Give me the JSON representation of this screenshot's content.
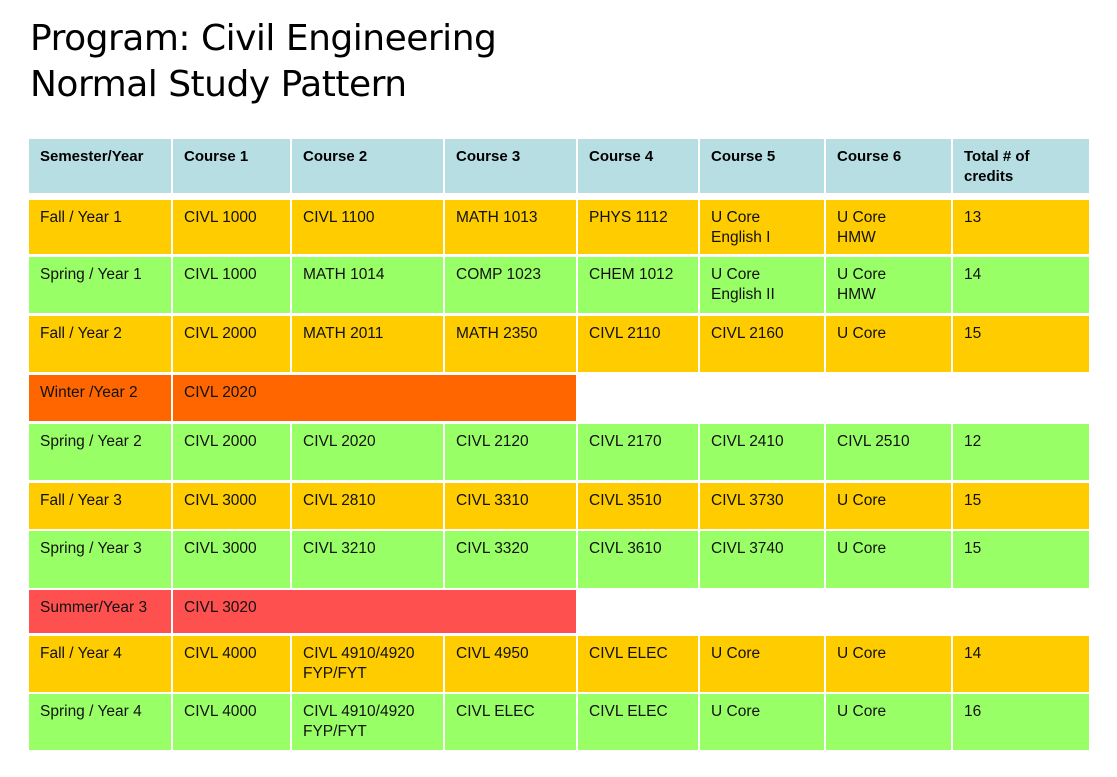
{
  "title": {
    "line1": "Program: Civil Engineering",
    "line2": "Normal Study Pattern"
  },
  "colors": {
    "header": "#B7DEE3",
    "fall": "#FFCC00",
    "spring": "#99FF66",
    "winter": "#FF6600",
    "summer": "#FF5050"
  },
  "table": {
    "headers": [
      "Semester/Year",
      "Course 1",
      "Course 2",
      "Course 3",
      "Course 4",
      "Course 5",
      "Course 6",
      "Total # of credits"
    ],
    "rows": [
      {
        "term": "Fall / Year 1",
        "kind": "fall",
        "courses": [
          "CIVL 1000",
          "CIVL 1100",
          "MATH 1013",
          "PHYS 1112",
          "U Core\nEnglish I",
          "U Core\nHMW"
        ],
        "credits": "13"
      },
      {
        "term": "Spring / Year 1",
        "kind": "spring",
        "courses": [
          "CIVL 1000",
          "MATH 1014",
          "COMP 1023",
          "CHEM 1012",
          "U Core\nEnglish II",
          "U Core\nHMW"
        ],
        "credits": "14"
      },
      {
        "term": "Fall / Year 2",
        "kind": "fall",
        "courses": [
          "CIVL 2000",
          "MATH 2011",
          "MATH 2350",
          "CIVL 2110",
          "CIVL 2160",
          "U Core"
        ],
        "credits": "15"
      },
      {
        "term": "Winter /Year 2",
        "kind": "winter",
        "courses": [
          "CIVL 2020"
        ],
        "credits": null
      },
      {
        "term": "Spring / Year 2",
        "kind": "spring",
        "courses": [
          "CIVL 2000",
          "CIVL 2020",
          "CIVL 2120",
          "CIVL 2170",
          "CIVL 2410",
          "CIVL 2510"
        ],
        "credits": "12"
      },
      {
        "term": "Fall / Year 3",
        "kind": "fall",
        "courses": [
          "CIVL 3000",
          "CIVL 2810",
          "CIVL 3310",
          "CIVL 3510",
          "CIVL 3730",
          "U Core"
        ],
        "credits": "15"
      },
      {
        "term": "Spring / Year 3",
        "kind": "spring",
        "courses": [
          "CIVL 3000",
          "CIVL 3210",
          "CIVL 3320",
          "CIVL 3610",
          "CIVL 3740",
          "U Core"
        ],
        "credits": "15"
      },
      {
        "term": "Summer/Year 3",
        "kind": "summer",
        "courses": [
          "CIVL 3020"
        ],
        "credits": null
      },
      {
        "term": "Fall / Year 4",
        "kind": "fall",
        "courses": [
          "CIVL 4000",
          "CIVL 4910/4920\nFYP/FYT",
          "CIVL 4950",
          "CIVL ELEC",
          "U Core",
          "U Core"
        ],
        "credits": "14"
      },
      {
        "term": "Spring / Year 4",
        "kind": "spring",
        "courses": [
          "CIVL 4000",
          "CIVL 4910/4920\nFYP/FYT",
          "CIVL ELEC",
          "CIVL ELEC",
          "U Core",
          "U Core"
        ],
        "credits": "16"
      }
    ]
  }
}
